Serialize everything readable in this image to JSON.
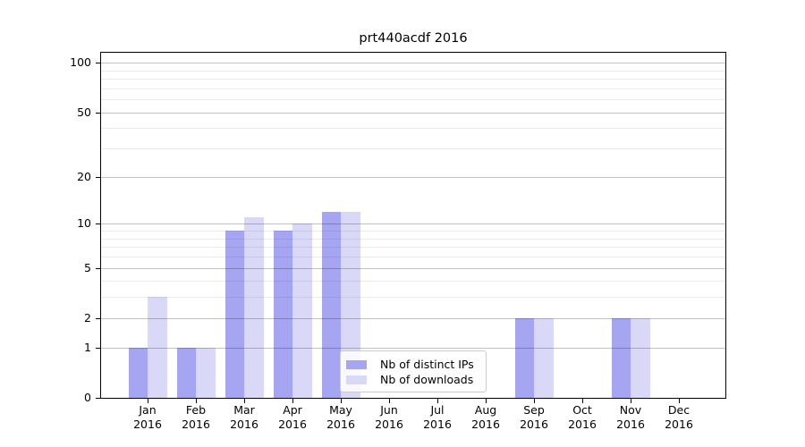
{
  "window": {
    "background": "#ffffff"
  },
  "chart_data": {
    "type": "bar",
    "title": "prt440acdf 2016",
    "categories": [
      "Jan 2016",
      "Feb 2016",
      "Mar 2016",
      "Apr 2016",
      "May 2016",
      "Jun 2016",
      "Jul 2016",
      "Aug 2016",
      "Sep 2016",
      "Oct 2016",
      "Nov 2016",
      "Dec 2016"
    ],
    "series": [
      {
        "name": "Nb of distinct IPs",
        "color": "#a5a5f2",
        "values": [
          1,
          1,
          9,
          9,
          12,
          0,
          0,
          0,
          2,
          0,
          2,
          0
        ]
      },
      {
        "name": "Nb of downloads",
        "color": "#d9d9f7",
        "values": [
          3,
          1,
          11,
          10,
          12,
          0,
          0,
          0,
          2,
          0,
          2,
          0
        ]
      }
    ],
    "xlabel": "",
    "ylabel": "",
    "yscale": "log1p",
    "ylim": [
      0,
      115
    ],
    "yticks": [
      0,
      1,
      2,
      5,
      10,
      20,
      50,
      100
    ],
    "yticks_minor": [
      3,
      4,
      6,
      7,
      8,
      9,
      30,
      40,
      60,
      70,
      80,
      90
    ],
    "grid": "on",
    "legend_position": "inside lower center"
  }
}
